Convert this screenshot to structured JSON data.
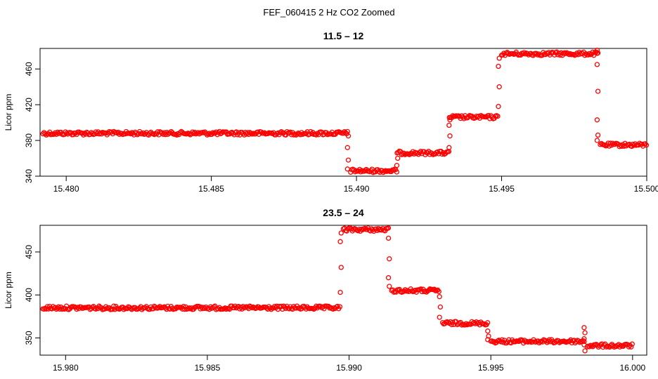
{
  "title": "FEF_060415  2 Hz CO2 Zoomed",
  "colors": {
    "points": "#ff0000",
    "axis": "#000000"
  },
  "chart_data": [
    {
      "type": "scatter",
      "title": "11.5 – 12",
      "xlabel": "",
      "ylabel": "Licor ppm",
      "xlim": [
        15.4791,
        15.5
      ],
      "ylim": [
        340,
        483
      ],
      "xticks": [
        "15.480",
        "15.485",
        "15.490",
        "15.495",
        "15.500"
      ],
      "xtick_values": [
        15.48,
        15.485,
        15.49,
        15.495,
        15.5
      ],
      "yticks": [
        "340",
        "380",
        "420",
        "460"
      ],
      "ytick_values": [
        340,
        380,
        420,
        460
      ],
      "grid": false,
      "segments": [
        {
          "x0": 15.4792,
          "x1": 15.4897,
          "y": 388
        },
        {
          "x0": 15.4898,
          "x1": 15.4914,
          "y": 346
        },
        {
          "x0": 15.4914,
          "x1": 15.4932,
          "y": 366
        },
        {
          "x0": 15.4932,
          "x1": 15.4949,
          "y": 406
        },
        {
          "x0": 15.495,
          "x1": 15.4983,
          "y": 477
        },
        {
          "x0": 15.4984,
          "x1": 15.5,
          "y": 375
        }
      ],
      "transitions": [
        {
          "x": 15.4897,
          "y": [
            390,
            385,
            372,
            358,
            348
          ]
        },
        {
          "x": 15.4914,
          "y": [
            352,
            360
          ]
        },
        {
          "x": 15.4932,
          "y": [
            372,
            385,
            397,
            403
          ]
        },
        {
          "x": 15.4949,
          "y": [
            418,
            440,
            463,
            472
          ]
        },
        {
          "x": 15.4983,
          "y": [
            481,
            478,
            465,
            435,
            403,
            386,
            380
          ]
        }
      ]
    },
    {
      "type": "scatter",
      "title": "23.5 – 24",
      "xlabel": "",
      "ylabel": "Licor ppm",
      "xlim": [
        15.9791,
        16.0005
      ],
      "ylim": [
        330,
        481
      ],
      "xticks": [
        "15.980",
        "15.985",
        "15.990",
        "15.995",
        "16.000"
      ],
      "xtick_values": [
        15.98,
        15.985,
        15.99,
        15.995,
        16.0
      ],
      "yticks": [
        "350",
        "400",
        "450"
      ],
      "ytick_values": [
        350,
        400,
        450
      ],
      "grid": false,
      "segments": [
        {
          "x0": 15.9792,
          "x1": 15.9897,
          "y": 385
        },
        {
          "x0": 15.9898,
          "x1": 15.9914,
          "y": 476
        },
        {
          "x0": 15.9915,
          "x1": 15.9932,
          "y": 405
        },
        {
          "x0": 15.9933,
          "x1": 15.9949,
          "y": 367
        },
        {
          "x0": 15.995,
          "x1": 15.9983,
          "y": 346
        },
        {
          "x0": 15.9984,
          "x1": 16.0,
          "y": 341
        }
      ],
      "transitions": [
        {
          "x": 15.9897,
          "y": [
            403,
            432,
            462,
            472
          ]
        },
        {
          "x": 15.9914,
          "y": [
            466,
            442,
            420,
            410
          ]
        },
        {
          "x": 15.9932,
          "y": [
            398,
            386,
            374
          ]
        },
        {
          "x": 15.9949,
          "y": [
            358,
            352,
            348
          ]
        },
        {
          "x": 15.9983,
          "y": [
            362,
            356,
            349,
            335,
            342
          ]
        }
      ]
    }
  ]
}
